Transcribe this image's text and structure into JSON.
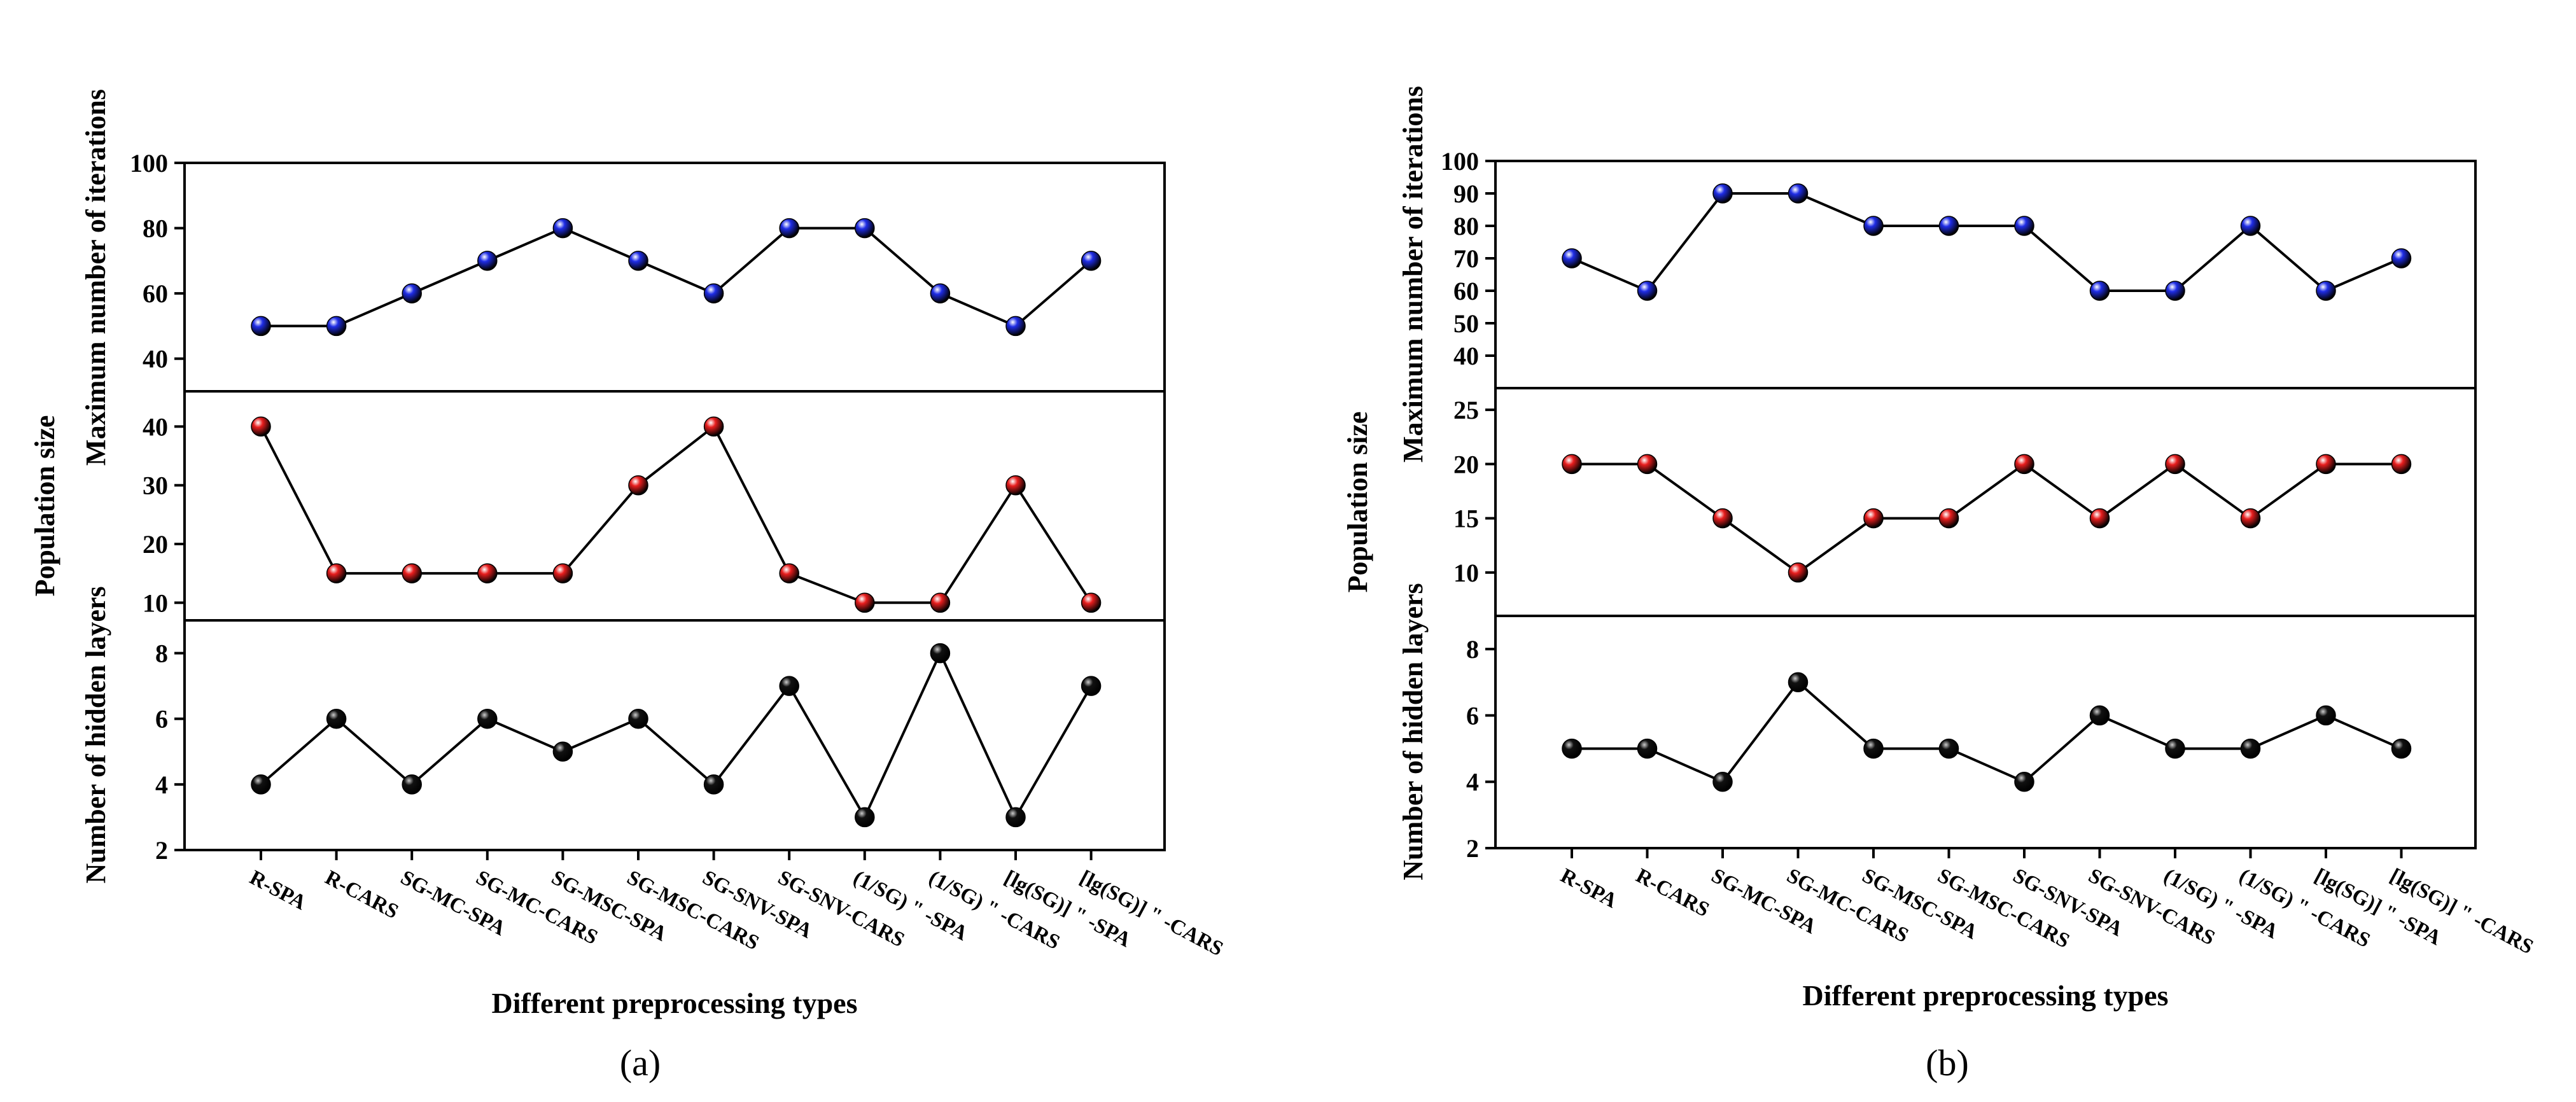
{
  "chart_data": [
    {
      "panel_label": "(a)",
      "type": "line",
      "xlabel": "Different preprocessing types",
      "categories": [
        "R-SPA",
        "R-CARS",
        "SG-MC-SPA",
        "SG-MC-CARS",
        "SG-MSC-SPA",
        "SG-MSC-CARS",
        "SG-SNV-SPA",
        "SG-SNV-CARS",
        "(1/SG) \" -SPA",
        "(1/SG) \" -CARS",
        "[lg(SG)] \" -SPA",
        "[lg(SG)] \" -CARS"
      ],
      "subplots": [
        {
          "ylabel": "Maximum number of iterations",
          "ylim": [
            30,
            100
          ],
          "yticks": [
            40,
            60,
            80,
            100
          ],
          "marker_color": "#1f2de6",
          "values": [
            50,
            50,
            60,
            70,
            80,
            70,
            60,
            80,
            80,
            60,
            50,
            70
          ]
        },
        {
          "ylabel": "Population size",
          "ylim": [
            7,
            46
          ],
          "yticks": [
            10,
            20,
            30,
            40
          ],
          "marker_color": "#e81e1e",
          "values": [
            40,
            15,
            15,
            15,
            15,
            30,
            40,
            15,
            10,
            10,
            30,
            10
          ]
        },
        {
          "ylabel": "Number of hidden layers",
          "ylim": [
            2,
            9
          ],
          "yticks": [
            2,
            4,
            6,
            8
          ],
          "marker_color": "#111111",
          "values": [
            4,
            6,
            4,
            6,
            5,
            6,
            4,
            7,
            3,
            8,
            3,
            7
          ]
        }
      ]
    },
    {
      "panel_label": "(b)",
      "type": "line",
      "xlabel": "Different preprocessing types",
      "categories": [
        "R-SPA",
        "R-CARS",
        "SG-MC-SPA",
        "SG-MC-CARS",
        "SG-MSC-SPA",
        "SG-MSC-CARS",
        "SG-SNV-SPA",
        "SG-SNV-CARS",
        "(1/SG) \" -SPA",
        "(1/SG) \" -CARS",
        "[lg(SG)] \" -SPA",
        "[lg(SG)] \" -CARS"
      ],
      "subplots": [
        {
          "ylabel": "Maximum number of iterations",
          "ylim": [
            30,
            100
          ],
          "yticks": [
            40,
            50,
            60,
            70,
            80,
            90,
            100
          ],
          "marker_color": "#1f2de6",
          "values": [
            70,
            60,
            90,
            90,
            80,
            80,
            80,
            60,
            60,
            80,
            60,
            70
          ]
        },
        {
          "ylabel": "Population size",
          "ylim": [
            6,
            27
          ],
          "yticks": [
            10,
            15,
            20,
            25
          ],
          "marker_color": "#e81e1e",
          "values": [
            20,
            20,
            15,
            10,
            15,
            15,
            20,
            15,
            20,
            15,
            20,
            20
          ]
        },
        {
          "ylabel": "Number of hidden layers",
          "ylim": [
            2,
            9
          ],
          "yticks": [
            2,
            4,
            6,
            8
          ],
          "marker_color": "#111111",
          "values": [
            5,
            5,
            4,
            7,
            5,
            5,
            4,
            6,
            5,
            5,
            6,
            5
          ]
        }
      ]
    }
  ]
}
